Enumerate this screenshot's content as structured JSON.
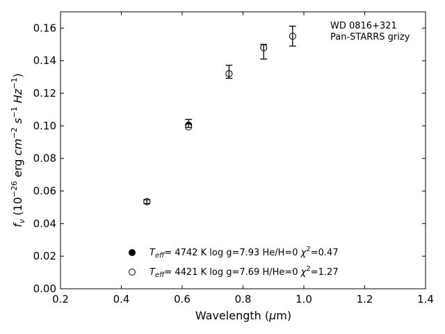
{
  "chart_data": {
    "type": "scatter",
    "title": "",
    "xlabel": "Wavelength (μm)",
    "ylabel": "f_ν (10⁻²⁶ erg cm⁻² s⁻¹ Hz⁻¹)",
    "xlim": [
      0.2,
      1.4
    ],
    "ylim": [
      0.0,
      0.17
    ],
    "xticks": [
      0.2,
      0.4,
      0.6,
      0.8,
      1.0,
      1.2,
      1.4
    ],
    "xtick_labels": [
      "0.2",
      "0.4",
      "0.6",
      "0.8",
      "1.0",
      "1.2",
      "1.4"
    ],
    "yticks": [
      0.0,
      0.02,
      0.04,
      0.06,
      0.08,
      0.1,
      0.12,
      0.14,
      0.16
    ],
    "ytick_labels": [
      "0.00",
      "0.02",
      "0.04",
      "0.06",
      "0.08",
      "0.10",
      "0.12",
      "0.14",
      "0.16"
    ],
    "grid": false,
    "annotation": [
      "WD 0816+321",
      "Pan-STARRS grizy"
    ],
    "observed": {
      "x": [
        0.484,
        0.621,
        0.754,
        0.868,
        0.963
      ],
      "y": [
        0.0535,
        0.1003,
        0.1332,
        0.1465,
        0.155
      ],
      "yerr_low": [
        0.0012,
        0.0013,
        0.004,
        0.0055,
        0.006
      ],
      "yerr_high": [
        0.0012,
        0.0037,
        0.004,
        0.0035,
        0.0062
      ]
    },
    "series": [
      {
        "marker": "filled-circle",
        "legend_label": "T_eff=  4742 K  log g=7.93  He/H=0  χ²=0.47",
        "x": [
          0.484,
          0.621,
          0.754,
          0.868,
          0.963
        ],
        "y": [
          0.0535,
          0.1005,
          0.132,
          0.148,
          0.155
        ]
      },
      {
        "marker": "open-circle",
        "legend_label": "T_eff=  4421 K  log g=7.69  H/He=0  χ²=1.27",
        "x": [
          0.484,
          0.621,
          0.754,
          0.868,
          0.963
        ],
        "y": [
          0.0535,
          0.0993,
          0.132,
          0.148,
          0.155
        ]
      }
    ],
    "legend": {
      "placement": "lower-center",
      "entries": [
        {
          "teff": "4742 K",
          "logg": "log g=7.93",
          "comp": "He/H=0",
          "chi": "=0.47"
        },
        {
          "teff": "4421 K",
          "logg": "log g=7.69",
          "comp": "H/He=0",
          "chi": "=1.27"
        }
      ]
    }
  }
}
